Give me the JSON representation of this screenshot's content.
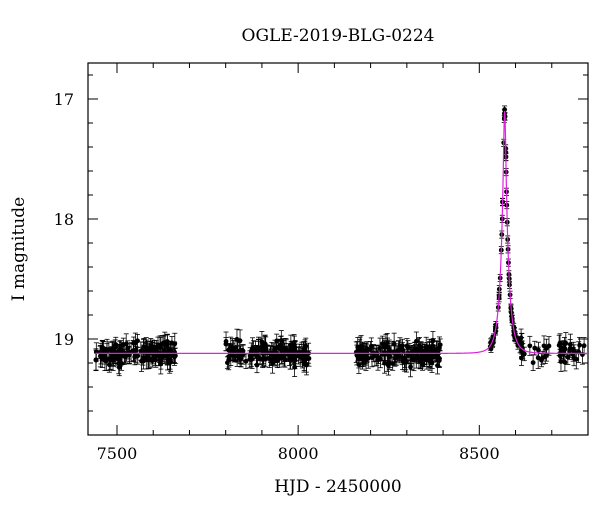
{
  "chart_data": {
    "type": "scatter",
    "title": "OGLE-2019-BLG-0224",
    "xlabel": "HJD - 2450000",
    "ylabel": "I magnitude",
    "xlim": [
      7420,
      8800
    ],
    "ylim": [
      19.8,
      16.7
    ],
    "y_inverted": true,
    "x_ticks": [
      7500,
      8000,
      8500
    ],
    "y_ticks": [
      17,
      18,
      19
    ],
    "grid": false,
    "colors": {
      "data": "#000000",
      "model": "#e020e0"
    },
    "observations": {
      "season_ranges": [
        [
          7440,
          7665
        ],
        [
          7800,
          8030
        ],
        [
          8160,
          8395
        ],
        [
          8530,
          8790
        ]
      ],
      "baseline_mag": 19.13,
      "scatter_mag": 0.09,
      "typical_error": 0.07,
      "count_per_season": [
        140,
        150,
        150,
        120
      ]
    },
    "model": {
      "baseline_mag": 19.12,
      "peak_hjd": 8570,
      "peak_mag": 17.1,
      "einstein_time_days": 20,
      "x_range": [
        7440,
        8800
      ]
    }
  }
}
